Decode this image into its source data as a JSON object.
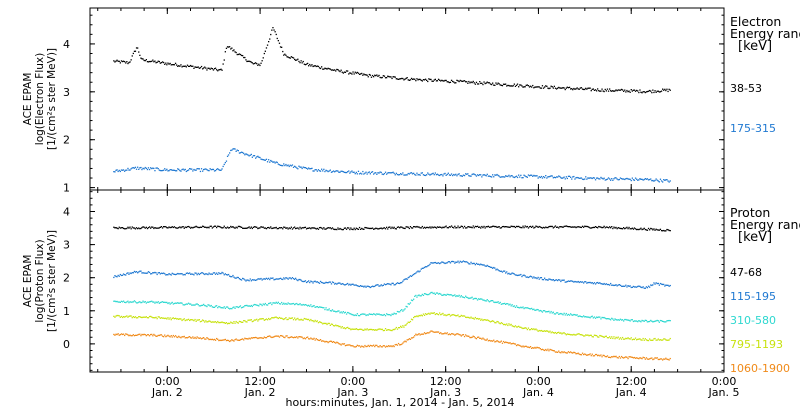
{
  "footer": {
    "xlabel": "hours:minutes, Jan.  1, 2014 - Jan.  5, 2014"
  },
  "x_axis": {
    "ticks": [
      {
        "time": "0:00",
        "day": "Jan. 2",
        "hour": 24
      },
      {
        "time": "12:00",
        "day": "Jan. 2",
        "hour": 36
      },
      {
        "time": "0:00",
        "day": "Jan. 3",
        "hour": 48
      },
      {
        "time": "12:00",
        "day": "Jan. 3",
        "hour": 60
      },
      {
        "time": "0:00",
        "day": "Jan. 4",
        "hour": 72
      },
      {
        "time": "12:00",
        "day": "Jan. 4",
        "hour": 84
      },
      {
        "time": "0:00",
        "day": "Jan. 5",
        "hour": 96
      }
    ]
  },
  "chart_data": [
    {
      "type": "scatter",
      "panel": "electron",
      "ylabel_lines": [
        "ACE EPAM",
        "log(Electron Flux)",
        "[1/(cm²s ster MeV)]"
      ],
      "xlim": [
        14,
        96
      ],
      "ylim": [
        0.95,
        4.75
      ],
      "yticks": [
        1,
        2,
        3,
        4
      ],
      "grid": false,
      "legend": {
        "title_lines": [
          "Electron",
          "Energy range",
          "[keV]"
        ],
        "placement": "right"
      },
      "series": [
        {
          "name": "38-53",
          "color": "#000000",
          "keyframes": [
            [
              17,
              3.65
            ],
            [
              19,
              3.62
            ],
            [
              20,
              3.95
            ],
            [
              20.6,
              3.68
            ],
            [
              24,
              3.6
            ],
            [
              28,
              3.52
            ],
            [
              31,
              3.46
            ],
            [
              31.6,
              3.98
            ],
            [
              34,
              3.7
            ],
            [
              35,
              3.6
            ],
            [
              36,
              3.58
            ],
            [
              37.6,
              4.35
            ],
            [
              39,
              3.8
            ],
            [
              42,
              3.58
            ],
            [
              46,
              3.45
            ],
            [
              50,
              3.35
            ],
            [
              56,
              3.27
            ],
            [
              62,
              3.22
            ],
            [
              68,
              3.16
            ],
            [
              74,
              3.1
            ],
            [
              80,
              3.05
            ],
            [
              86,
              3.02
            ],
            [
              89,
              3.05
            ]
          ]
        },
        {
          "name": "175-315",
          "color": "#1f78d1",
          "keyframes": [
            [
              17,
              1.35
            ],
            [
              20,
              1.42
            ],
            [
              24,
              1.38
            ],
            [
              31,
              1.38
            ],
            [
              32.2,
              1.82
            ],
            [
              34,
              1.72
            ],
            [
              38,
              1.52
            ],
            [
              42,
              1.4
            ],
            [
              48,
              1.33
            ],
            [
              56,
              1.3
            ],
            [
              64,
              1.27
            ],
            [
              72,
              1.24
            ],
            [
              80,
              1.2
            ],
            [
              86,
              1.18
            ],
            [
              89,
              1.15
            ]
          ]
        }
      ]
    },
    {
      "type": "scatter",
      "panel": "proton",
      "ylabel_lines": [
        "ACE EPAM",
        "log(Proton Flux)",
        "[1/(cm²s ster MeV)]"
      ],
      "xlim": [
        14,
        96
      ],
      "ylim": [
        -0.85,
        4.65
      ],
      "yticks": [
        0,
        1,
        2,
        3,
        4
      ],
      "grid": false,
      "legend": {
        "title_lines": [
          "Proton",
          "Energy range",
          "[keV]"
        ],
        "placement": "right"
      },
      "series": [
        {
          "name": "47-68",
          "color": "#000000",
          "keyframes": [
            [
              17,
              3.52
            ],
            [
              30,
              3.55
            ],
            [
              40,
              3.52
            ],
            [
              47,
              3.5
            ],
            [
              60,
              3.55
            ],
            [
              72,
              3.55
            ],
            [
              80,
              3.55
            ],
            [
              89,
              3.45
            ]
          ]
        },
        {
          "name": "115-195",
          "color": "#1f78d1",
          "keyframes": [
            [
              17,
              2.05
            ],
            [
              20,
              2.2
            ],
            [
              24,
              2.12
            ],
            [
              31,
              2.15
            ],
            [
              34,
              1.95
            ],
            [
              40,
              2.0
            ],
            [
              42,
              1.9
            ],
            [
              46,
              1.85
            ],
            [
              50,
              1.75
            ],
            [
              54,
              1.85
            ],
            [
              56,
              2.15
            ],
            [
              58,
              2.45
            ],
            [
              62,
              2.5
            ],
            [
              65,
              2.4
            ],
            [
              68,
              2.15
            ],
            [
              72,
              2.0
            ],
            [
              76,
              1.9
            ],
            [
              80,
              1.85
            ],
            [
              84,
              1.75
            ],
            [
              86,
              1.72
            ],
            [
              87,
              1.85
            ],
            [
              89,
              1.75
            ]
          ]
        },
        {
          "name": "310-580",
          "color": "#2ed8d0",
          "keyframes": [
            [
              17,
              1.3
            ],
            [
              22,
              1.28
            ],
            [
              28,
              1.2
            ],
            [
              32,
              1.1
            ],
            [
              38,
              1.25
            ],
            [
              42,
              1.2
            ],
            [
              48,
              0.9
            ],
            [
              53,
              0.9
            ],
            [
              54.5,
              1.05
            ],
            [
              56,
              1.45
            ],
            [
              58,
              1.55
            ],
            [
              62,
              1.45
            ],
            [
              66,
              1.3
            ],
            [
              70,
              1.1
            ],
            [
              74,
              0.95
            ],
            [
              78,
              0.85
            ],
            [
              82,
              0.75
            ],
            [
              86,
              0.7
            ],
            [
              89,
              0.7
            ]
          ]
        },
        {
          "name": "795-1193",
          "color": "#c7e20f",
          "keyframes": [
            [
              17,
              0.85
            ],
            [
              22,
              0.82
            ],
            [
              28,
              0.72
            ],
            [
              32,
              0.65
            ],
            [
              38,
              0.8
            ],
            [
              42,
              0.75
            ],
            [
              48,
              0.45
            ],
            [
              53,
              0.45
            ],
            [
              54.5,
              0.55
            ],
            [
              56,
              0.85
            ],
            [
              58,
              0.95
            ],
            [
              62,
              0.85
            ],
            [
              66,
              0.7
            ],
            [
              70,
              0.5
            ],
            [
              74,
              0.35
            ],
            [
              78,
              0.28
            ],
            [
              82,
              0.2
            ],
            [
              86,
              0.15
            ],
            [
              89,
              0.15
            ]
          ]
        },
        {
          "name": "1060-1900",
          "color": "#f08a19",
          "keyframes": [
            [
              17,
              0.3
            ],
            [
              22,
              0.28
            ],
            [
              28,
              0.2
            ],
            [
              32,
              0.12
            ],
            [
              38,
              0.25
            ],
            [
              42,
              0.2
            ],
            [
              48,
              -0.05
            ],
            [
              53,
              -0.05
            ],
            [
              54.5,
              0.05
            ],
            [
              56,
              0.28
            ],
            [
              58,
              0.38
            ],
            [
              62,
              0.28
            ],
            [
              66,
              0.12
            ],
            [
              70,
              -0.05
            ],
            [
              74,
              -0.2
            ],
            [
              78,
              -0.3
            ],
            [
              82,
              -0.38
            ],
            [
              86,
              -0.42
            ],
            [
              89,
              -0.45
            ]
          ]
        }
      ]
    }
  ]
}
